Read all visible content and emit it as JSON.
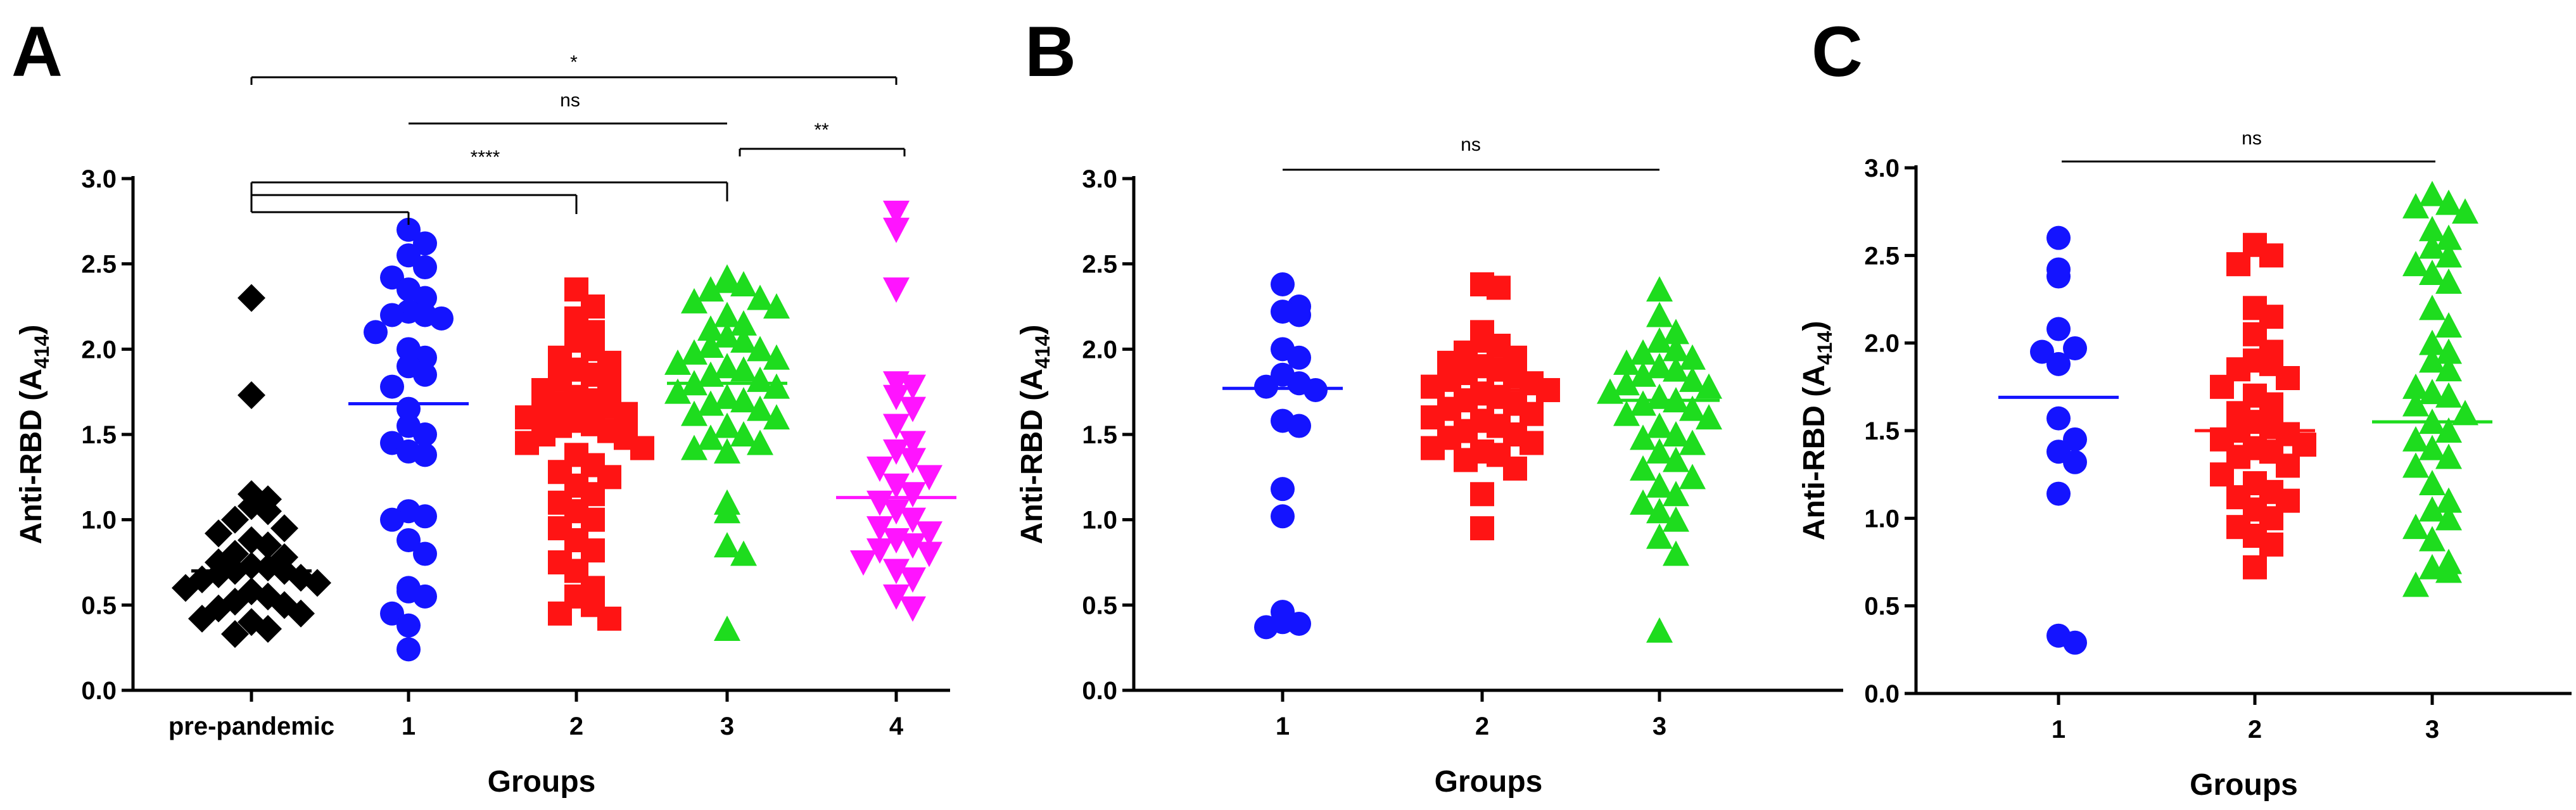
{
  "figure": {
    "panels": [
      "A",
      "B",
      "C"
    ]
  },
  "chart_data": [
    {
      "panel": "A",
      "type": "scatter",
      "ylabel": "Anti-RBD (A414)",
      "ylabel_main": "Anti-RBD (A",
      "ylabel_sub": "414",
      "ylabel_close": ")",
      "xlabel": "Groups",
      "ylim": [
        0,
        3.0
      ],
      "yticks": [
        "0.0",
        "0.5",
        "1.0",
        "1.5",
        "2.0",
        "2.5",
        "3.0"
      ],
      "categories": [
        "pre-pandemic",
        "1",
        "2",
        "3",
        "4"
      ],
      "series": [
        {
          "category": "pre-pandemic",
          "color": "#000000",
          "marker": "diamond",
          "median": 0.7,
          "values": [
            2.3,
            1.73,
            1.15,
            1.12,
            1.08,
            1.05,
            1.0,
            0.95,
            0.92,
            0.88,
            0.85,
            0.8,
            0.78,
            0.75,
            0.73,
            0.72,
            0.7,
            0.7,
            0.68,
            0.66,
            0.65,
            0.63,
            0.6,
            0.58,
            0.55,
            0.52,
            0.5,
            0.48,
            0.45,
            0.42,
            0.4,
            0.36,
            0.33
          ]
        },
        {
          "category": "1",
          "color": "#1414ff",
          "marker": "circle",
          "median": 1.68,
          "values": [
            2.7,
            2.62,
            2.55,
            2.48,
            2.42,
            2.35,
            2.3,
            2.22,
            2.2,
            2.2,
            2.18,
            2.1,
            2.0,
            1.95,
            1.9,
            1.85,
            1.78,
            1.65,
            1.55,
            1.5,
            1.45,
            1.4,
            1.38,
            1.05,
            1.02,
            1.0,
            0.88,
            0.8,
            0.6,
            0.58,
            0.55,
            0.45,
            0.38,
            0.24
          ]
        },
        {
          "category": "2",
          "color": "#ff1414",
          "marker": "square",
          "median": 1.58,
          "values": [
            2.35,
            2.25,
            2.18,
            2.1,
            2.05,
            2.0,
            1.95,
            1.92,
            1.88,
            1.85,
            1.82,
            1.8,
            1.76,
            1.72,
            1.7,
            1.68,
            1.66,
            1.64,
            1.62,
            1.6,
            1.58,
            1.56,
            1.55,
            1.52,
            1.5,
            1.48,
            1.45,
            1.42,
            1.38,
            1.32,
            1.28,
            1.25,
            1.2,
            1.15,
            1.1,
            1.05,
            1.0,
            0.95,
            0.88,
            0.82,
            0.75,
            0.7,
            0.6,
            0.55,
            0.5,
            0.45,
            0.42
          ]
        },
        {
          "category": "3",
          "color": "#1edc1e",
          "marker": "triangle-up",
          "median": 1.8,
          "values": [
            2.42,
            2.4,
            2.38,
            2.35,
            2.3,
            2.28,
            2.25,
            2.2,
            2.15,
            2.12,
            2.08,
            2.05,
            2.02,
            2.0,
            1.98,
            1.95,
            1.92,
            1.9,
            1.88,
            1.85,
            1.82,
            1.8,
            1.78,
            1.75,
            1.72,
            1.7,
            1.68,
            1.65,
            1.62,
            1.6,
            1.55,
            1.5,
            1.48,
            1.45,
            1.42,
            1.4,
            1.1,
            1.05,
            0.85,
            0.8,
            0.36
          ]
        },
        {
          "category": "4",
          "color": "#ff14ff",
          "marker": "triangle-down",
          "median": 1.13,
          "values": [
            2.8,
            2.7,
            2.35,
            1.8,
            1.78,
            1.72,
            1.65,
            1.55,
            1.45,
            1.4,
            1.35,
            1.3,
            1.25,
            1.2,
            1.15,
            1.1,
            1.05,
            1.0,
            0.95,
            0.92,
            0.88,
            0.85,
            0.82,
            0.8,
            0.75,
            0.7,
            0.65,
            0.55,
            0.48
          ]
        }
      ],
      "significance": [
        {
          "from": 0,
          "to": 4,
          "label": "*"
        },
        {
          "from": 1,
          "to": 3,
          "label": "ns"
        },
        {
          "from": 3,
          "to": 4,
          "label": "**"
        },
        {
          "from": 0,
          "to": [
            1,
            2,
            3
          ],
          "label": "****"
        }
      ]
    },
    {
      "panel": "B",
      "type": "scatter",
      "ylabel": "Anti-RBD (A414)",
      "ylabel_main": "Anti-RBD (A",
      "ylabel_sub": "414",
      "ylabel_close": ")",
      "xlabel": "Groups",
      "ylim": [
        0,
        3.0
      ],
      "yticks": [
        "0.0",
        "0.5",
        "1.0",
        "1.5",
        "2.0",
        "2.5",
        "3.0"
      ],
      "categories": [
        "1",
        "2",
        "3"
      ],
      "series": [
        {
          "category": "1",
          "color": "#1414ff",
          "marker": "circle",
          "median": 1.77,
          "values": [
            2.38,
            2.25,
            2.22,
            2.2,
            2.0,
            1.95,
            1.85,
            1.8,
            1.78,
            1.76,
            1.58,
            1.55,
            1.18,
            1.02,
            0.46,
            0.4,
            0.39,
            0.37
          ]
        },
        {
          "category": "2",
          "color": "#ff1414",
          "marker": "square",
          "median": 1.76,
          "values": [
            2.38,
            2.36,
            2.1,
            2.05,
            2.02,
            1.98,
            1.95,
            1.92,
            1.9,
            1.88,
            1.86,
            1.84,
            1.82,
            1.8,
            1.78,
            1.76,
            1.74,
            1.72,
            1.7,
            1.68,
            1.65,
            1.62,
            1.6,
            1.58,
            1.55,
            1.52,
            1.5,
            1.48,
            1.45,
            1.42,
            1.4,
            1.38,
            1.35,
            1.3,
            1.15,
            0.95
          ]
        },
        {
          "category": "3",
          "color": "#1edc1e",
          "marker": "triangle-up",
          "median": 1.7,
          "values": [
            2.35,
            2.2,
            2.1,
            2.05,
            2.0,
            1.98,
            1.95,
            1.92,
            1.9,
            1.88,
            1.85,
            1.82,
            1.8,
            1.78,
            1.75,
            1.72,
            1.7,
            1.68,
            1.65,
            1.62,
            1.6,
            1.55,
            1.5,
            1.48,
            1.45,
            1.4,
            1.35,
            1.3,
            1.25,
            1.2,
            1.15,
            1.1,
            1.05,
            1.0,
            0.9,
            0.8,
            0.35
          ]
        }
      ],
      "significance": [
        {
          "from": 0,
          "to": 2,
          "label": "ns"
        }
      ]
    },
    {
      "panel": "C",
      "type": "scatter",
      "ylabel": "Anti-RBD (A414)",
      "ylabel_main": "Anti-RBD (A",
      "ylabel_sub": "414",
      "ylabel_close": ")",
      "xlabel": "Groups",
      "ylim": [
        0,
        3.0
      ],
      "yticks": [
        "0.0",
        "0.5",
        "1.0",
        "1.5",
        "2.0",
        "2.5",
        "3.0"
      ],
      "categories": [
        "1",
        "2",
        "3"
      ],
      "series": [
        {
          "category": "1",
          "color": "#1414ff",
          "marker": "circle",
          "median": 1.69,
          "values": [
            2.6,
            2.42,
            2.38,
            2.08,
            1.97,
            1.95,
            1.88,
            1.57,
            1.45,
            1.38,
            1.32,
            1.14,
            0.33,
            0.29
          ]
        },
        {
          "category": "2",
          "color": "#ff1414",
          "marker": "square",
          "median": 1.5,
          "values": [
            2.56,
            2.5,
            2.45,
            2.2,
            2.15,
            2.05,
            1.95,
            1.9,
            1.88,
            1.85,
            1.8,
            1.75,
            1.7,
            1.65,
            1.6,
            1.55,
            1.52,
            1.5,
            1.48,
            1.45,
            1.42,
            1.4,
            1.38,
            1.35,
            1.3,
            1.25,
            1.2,
            1.15,
            1.12,
            1.1,
            1.05,
            1.0,
            0.95,
            0.9,
            0.85,
            0.72
          ]
        },
        {
          "category": "3",
          "color": "#1edc1e",
          "marker": "triangle-up",
          "median": 1.55,
          "values": [
            2.85,
            2.8,
            2.78,
            2.75,
            2.65,
            2.6,
            2.55,
            2.5,
            2.45,
            2.4,
            2.35,
            2.2,
            2.1,
            2.0,
            1.95,
            1.9,
            1.85,
            1.75,
            1.72,
            1.7,
            1.65,
            1.6,
            1.55,
            1.5,
            1.45,
            1.4,
            1.35,
            1.3,
            1.2,
            1.1,
            1.05,
            1.0,
            0.95,
            0.88,
            0.75,
            0.72,
            0.7,
            0.62
          ]
        }
      ],
      "significance": [
        {
          "from": 0,
          "to": 2,
          "label": "ns"
        }
      ]
    }
  ]
}
